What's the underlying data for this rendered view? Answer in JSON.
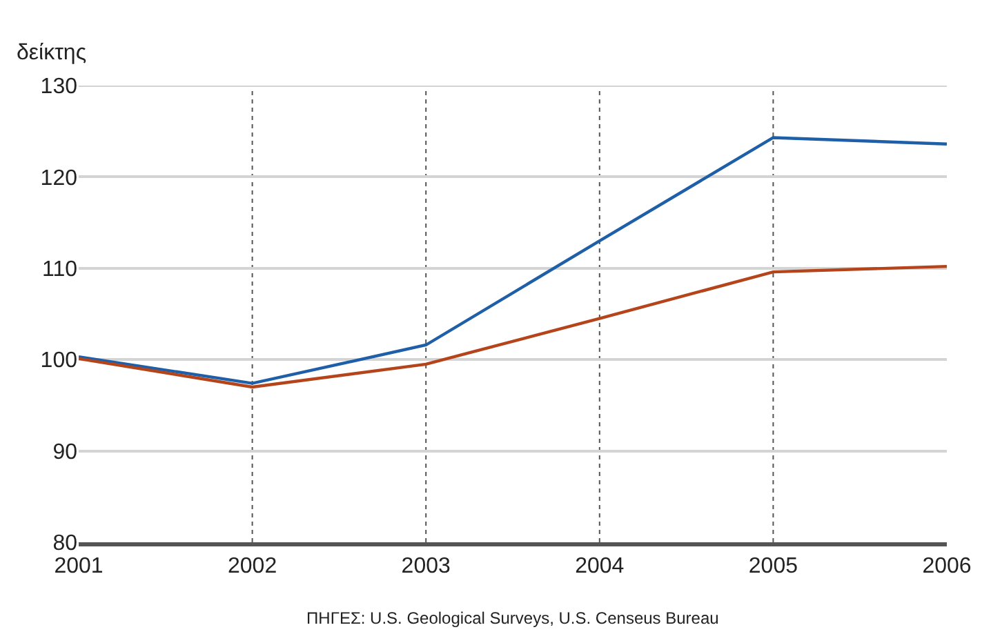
{
  "chart_data": {
    "type": "line",
    "ylabel": "δείκτης",
    "x": [
      2001,
      2002,
      2003,
      2004,
      2005,
      2006
    ],
    "series": [
      {
        "color": "#1f5fa8",
        "values": [
          100.3,
          97.4,
          101.6,
          113.0,
          124.3,
          123.6
        ]
      },
      {
        "color": "#b5441b",
        "values": [
          100.1,
          97.0,
          99.5,
          104.5,
          109.6,
          110.2
        ]
      }
    ],
    "xlim": [
      2001,
      2006
    ],
    "xticks": [
      2001,
      2002,
      2003,
      2004,
      2005,
      2006
    ],
    "ylim": [
      80,
      130
    ],
    "yticks": [
      80,
      90,
      100,
      110,
      120,
      130
    ],
    "grid": true,
    "marker": "none",
    "line_style": "solid",
    "annotations": [
      "ΠΗΓΕΣ: U.S. Geological Surveys, U.S. Censeus Bureau"
    ]
  }
}
